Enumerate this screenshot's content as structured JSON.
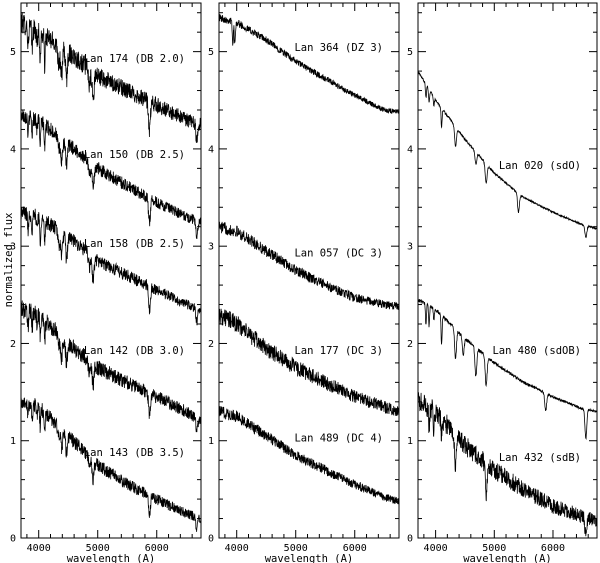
{
  "figure": {
    "ylabel": "normalized flux",
    "xlabel": "wavelength (A)"
  },
  "chart_data": [
    {
      "type": "line",
      "panel": "left",
      "xlabel": "wavelength (A)",
      "ylabel": "normalized flux",
      "xlim": [
        3700,
        6750
      ],
      "ylim": [
        0,
        5.5
      ],
      "xticks": [
        4000,
        5000,
        6000
      ],
      "yticks": [
        0,
        1,
        2,
        3,
        4,
        5
      ],
      "series": [
        {
          "name": "Lan 174 (DB 2.0)",
          "x": [
            3700,
            4000,
            4500,
            5000,
            5500,
            6000,
            6500,
            6750
          ],
          "y": [
            5.3,
            5.2,
            5.0,
            4.75,
            4.6,
            4.45,
            4.3,
            4.25
          ],
          "noise": 0.07,
          "lines": [
            3820,
            3889,
            3970,
            4026,
            4102,
            4340,
            4388,
            4471,
            4861,
            4922,
            5876,
            6678
          ],
          "depth": 0.3
        },
        {
          "name": "Lan 150 (DB 2.5)",
          "x": [
            3700,
            4000,
            4500,
            5000,
            5500,
            6000,
            6500,
            6750
          ],
          "y": [
            4.35,
            4.3,
            4.05,
            3.8,
            3.62,
            3.45,
            3.3,
            3.25
          ],
          "noise": 0.05,
          "lines": [
            3820,
            3889,
            3970,
            4026,
            4102,
            4340,
            4388,
            4471,
            4861,
            4922,
            5876,
            6678
          ],
          "depth": 0.25
        },
        {
          "name": "Lan 158 (DB 2.5)",
          "x": [
            3700,
            4000,
            4500,
            5000,
            5500,
            6000,
            6500,
            6750
          ],
          "y": [
            3.35,
            3.3,
            3.1,
            2.85,
            2.7,
            2.55,
            2.4,
            2.35
          ],
          "noise": 0.05,
          "lines": [
            3820,
            3889,
            3970,
            4026,
            4102,
            4340,
            4388,
            4471,
            4861,
            4922,
            5876,
            6678
          ],
          "depth": 0.25
        },
        {
          "name": "Lan 142 (DB 3.0)",
          "x": [
            3700,
            4000,
            4500,
            5000,
            5500,
            6000,
            6500,
            6750
          ],
          "y": [
            2.35,
            2.3,
            2.0,
            1.75,
            1.6,
            1.45,
            1.3,
            1.2
          ],
          "noise": 0.06,
          "lines": [
            3820,
            3889,
            3970,
            4026,
            4102,
            4340,
            4388,
            4471,
            4861,
            4922,
            5876,
            6678
          ],
          "depth": 0.22
        },
        {
          "name": "Lan 143 (DB 3.5)",
          "x": [
            3700,
            4000,
            4500,
            5000,
            5500,
            6000,
            6500,
            6750
          ],
          "y": [
            1.4,
            1.35,
            1.05,
            0.75,
            0.55,
            0.4,
            0.25,
            0.2
          ],
          "noise": 0.05,
          "lines": [
            3820,
            3889,
            3970,
            4026,
            4102,
            4340,
            4388,
            4471,
            4861,
            4922,
            5876,
            6678
          ],
          "depth": 0.2
        }
      ]
    },
    {
      "type": "line",
      "panel": "middle",
      "xlabel": "wavelength (A)",
      "xlim": [
        3700,
        6750
      ],
      "ylim": [
        0,
        5.5
      ],
      "xticks": [
        4000,
        5000,
        6000
      ],
      "yticks": [
        0,
        1,
        2,
        3,
        4,
        5
      ],
      "series": [
        {
          "name": "Lan 364 (DZ 3)",
          "x": [
            3700,
            4000,
            4500,
            5000,
            5500,
            6000,
            6500,
            6750
          ],
          "y": [
            5.35,
            5.3,
            5.12,
            4.9,
            4.72,
            4.55,
            4.4,
            4.38
          ],
          "noise": 0.025,
          "lines": [
            3934,
            3968
          ],
          "depth": 0.35
        },
        {
          "name": "Lan 057 (DC 3)",
          "x": [
            3700,
            4000,
            4500,
            5000,
            5500,
            6000,
            6500,
            6750
          ],
          "y": [
            3.2,
            3.15,
            2.95,
            2.75,
            2.6,
            2.47,
            2.4,
            2.38
          ],
          "noise": 0.04,
          "lines": [],
          "depth": 0
        },
        {
          "name": "Lan 177 (DC 3)",
          "x": [
            3700,
            4000,
            4500,
            5000,
            5500,
            6000,
            6500,
            6750
          ],
          "y": [
            2.3,
            2.2,
            1.95,
            1.75,
            1.6,
            1.45,
            1.35,
            1.3
          ],
          "noise": 0.06,
          "lines": [],
          "depth": 0
        },
        {
          "name": "Lan 489 (DC 4)",
          "x": [
            3700,
            4000,
            4500,
            5000,
            5500,
            6000,
            6500,
            6750
          ],
          "y": [
            1.3,
            1.25,
            1.05,
            0.85,
            0.7,
            0.55,
            0.42,
            0.38
          ],
          "noise": 0.04,
          "lines": [],
          "depth": 0
        }
      ]
    },
    {
      "type": "line",
      "panel": "right",
      "xlabel": "wavelength (A)",
      "xlim": [
        3700,
        6750
      ],
      "ylim": [
        0,
        5.5
      ],
      "xticks": [
        4000,
        5000,
        6000
      ],
      "yticks": [
        0,
        1,
        2,
        3,
        4,
        5
      ],
      "series": [
        {
          "name": "Lan 020 (sdO)",
          "x": [
            3700,
            4000,
            4500,
            5000,
            5500,
            6000,
            6500,
            6750
          ],
          "y": [
            4.8,
            4.5,
            4.1,
            3.75,
            3.5,
            3.35,
            3.22,
            3.18
          ],
          "noise": 0.008,
          "lines": [
            3835,
            3889,
            3970,
            4102,
            4340,
            4686,
            4861,
            5412,
            6560
          ],
          "depth": 0.2
        },
        {
          "name": "Lan 480 (sdOB)",
          "x": [
            3700,
            4000,
            4500,
            5000,
            5500,
            6000,
            6500,
            6750
          ],
          "y": [
            2.45,
            2.35,
            2.05,
            1.8,
            1.6,
            1.45,
            1.33,
            1.3
          ],
          "noise": 0.012,
          "lines": [
            3835,
            3889,
            3970,
            4102,
            4340,
            4471,
            4686,
            4861,
            5876,
            6560
          ],
          "depth": 0.3
        },
        {
          "name": "Lan 432 (sdB)",
          "x": [
            3700,
            4000,
            4500,
            5000,
            5500,
            6000,
            6500,
            6750
          ],
          "y": [
            1.4,
            1.3,
            0.95,
            0.7,
            0.5,
            0.33,
            0.22,
            0.18
          ],
          "noise": 0.07,
          "lines": [
            3889,
            3970,
            4102,
            4340,
            4861,
            6560
          ],
          "depth": 0.3
        }
      ]
    }
  ]
}
